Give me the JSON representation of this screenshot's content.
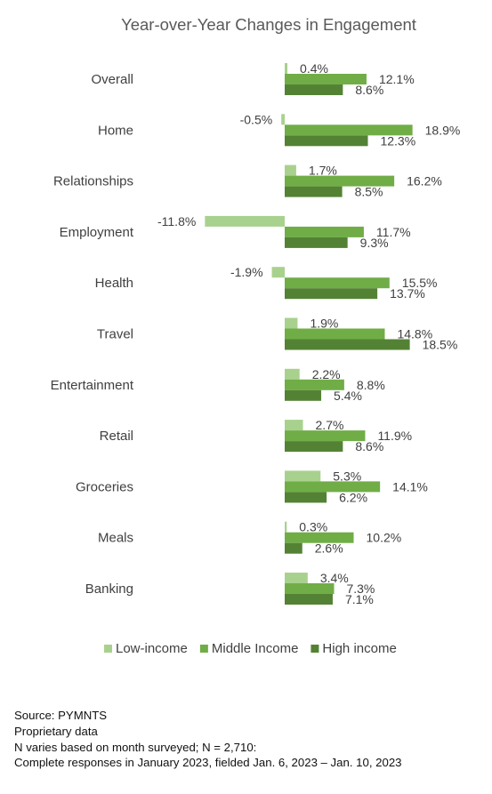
{
  "chart_data": {
    "type": "bar",
    "orientation": "horizontal",
    "title": "Year-over-Year Changes in Engagement",
    "categories": [
      "Overall",
      "Home",
      "Relationships",
      "Employment",
      "Health",
      "Travel",
      "Entertainment",
      "Retail",
      "Groceries",
      "Meals",
      "Banking"
    ],
    "series": [
      {
        "name": "Low-income",
        "color": "#a9d18e",
        "values": [
          0.4,
          -0.5,
          1.7,
          -11.8,
          -1.9,
          1.9,
          2.2,
          2.7,
          5.3,
          0.3,
          3.4
        ]
      },
      {
        "name": "Middle Income",
        "color": "#70ad47",
        "values": [
          12.1,
          18.9,
          16.2,
          11.7,
          15.5,
          14.8,
          8.8,
          11.9,
          14.1,
          10.2,
          7.3
        ]
      },
      {
        "name": "High income",
        "color": "#548235",
        "values": [
          8.6,
          12.3,
          8.5,
          9.3,
          13.7,
          18.5,
          5.4,
          8.6,
          6.2,
          2.6,
          7.1
        ]
      }
    ],
    "value_suffix": "%",
    "legend_position": "bottom",
    "grid": false
  },
  "notes": [
    "Source: PYMNTS",
    "Proprietary data",
    "N varies based on month surveyed; N = 2,710:",
    "Complete responses in January 2023, fielded Jan. 6, 2023 – Jan. 10, 2023"
  ]
}
